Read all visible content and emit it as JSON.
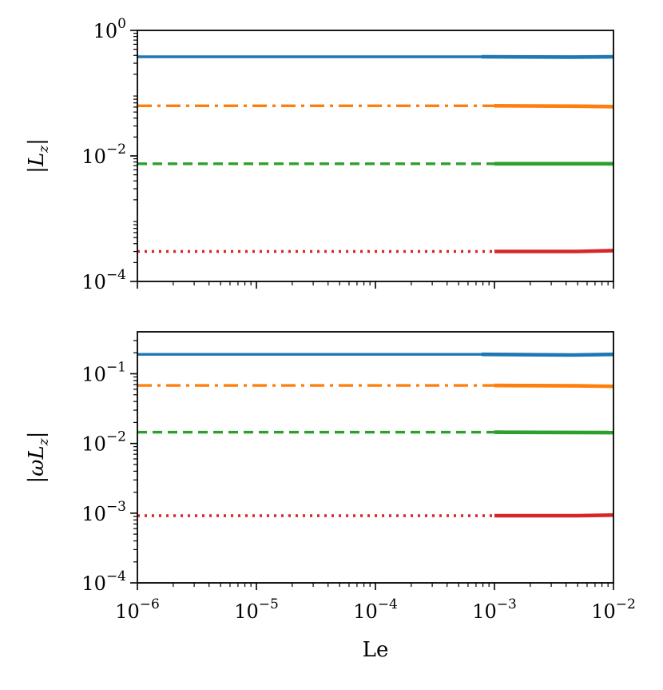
{
  "chart_data": [
    {
      "type": "line",
      "ylabel": "|L_z|",
      "ylabel_parts": {
        "open": "|",
        "symbol": "L",
        "sub": "z",
        "close": "|"
      },
      "xscale": "log",
      "yscale": "log",
      "xlim": [
        1e-06,
        0.01
      ],
      "ylim": [
        0.0001,
        1
      ],
      "x_ticks": [
        1e-06,
        1e-05,
        0.0001,
        0.001,
        0.01
      ],
      "x_tick_labels_shown": false,
      "y_ticks": [
        {
          "value": 1,
          "base": "10",
          "exp": "0"
        },
        {
          "value": 0.01,
          "base": "10",
          "exp": "−2"
        },
        {
          "value": 0.0001,
          "base": "10",
          "exp": "−4"
        }
      ],
      "grid": false,
      "series": [
        {
          "style": "solid",
          "color": "#1f77b4",
          "x": [
            1e-06,
            0.00078,
            0.0045,
            0.01
          ],
          "y": [
            0.38,
            0.38,
            0.375,
            0.38
          ]
        },
        {
          "style": "dashdot",
          "color": "#ff7f0e",
          "x": [
            1e-06,
            0.001,
            0.005,
            0.01
          ],
          "y": [
            0.063,
            0.063,
            0.062,
            0.061
          ]
        },
        {
          "style": "dashed",
          "color": "#2ca02c",
          "x": [
            1e-06,
            0.001,
            0.01
          ],
          "y": [
            0.0075,
            0.0075,
            0.0075
          ]
        },
        {
          "style": "dotted",
          "color": "#d62728",
          "x": [
            1e-06,
            0.001,
            0.005,
            0.01
          ],
          "y": [
            0.0003,
            0.0003,
            0.0003,
            0.00031
          ]
        }
      ]
    },
    {
      "type": "line",
      "xlabel": "Le",
      "ylabel": "|ωL_z|",
      "ylabel_parts": {
        "open": "|",
        "symbol": "ωL",
        "sub": "z",
        "close": "|"
      },
      "xscale": "log",
      "yscale": "log",
      "xlim": [
        1e-06,
        0.01
      ],
      "ylim": [
        0.0001,
        0.4
      ],
      "x_ticks": [
        {
          "value": 1e-06,
          "base": "10",
          "exp": "−6"
        },
        {
          "value": 1e-05,
          "base": "10",
          "exp": "−5"
        },
        {
          "value": 0.0001,
          "base": "10",
          "exp": "−4"
        },
        {
          "value": 0.001,
          "base": "10",
          "exp": "−3"
        },
        {
          "value": 0.01,
          "base": "10",
          "exp": "−2"
        }
      ],
      "y_ticks": [
        {
          "value": 0.1,
          "base": "10",
          "exp": "−1"
        },
        {
          "value": 0.01,
          "base": "10",
          "exp": "−2"
        },
        {
          "value": 0.001,
          "base": "10",
          "exp": "−3"
        },
        {
          "value": 0.0001,
          "base": "10",
          "exp": "−4"
        }
      ],
      "grid": false,
      "series": [
        {
          "style": "solid",
          "color": "#1f77b4",
          "x": [
            1e-06,
            0.00078,
            0.0045,
            0.01
          ],
          "y": [
            0.19,
            0.19,
            0.186,
            0.19
          ]
        },
        {
          "style": "dashdot",
          "color": "#ff7f0e",
          "x": [
            1e-06,
            0.001,
            0.005,
            0.01
          ],
          "y": [
            0.068,
            0.068,
            0.067,
            0.066
          ]
        },
        {
          "style": "dashed",
          "color": "#2ca02c",
          "x": [
            1e-06,
            0.001,
            0.01
          ],
          "y": [
            0.0145,
            0.0145,
            0.0143
          ]
        },
        {
          "style": "dotted",
          "color": "#d62728",
          "x": [
            1e-06,
            0.001,
            0.005,
            0.01
          ],
          "y": [
            0.00092,
            0.00092,
            0.00092,
            0.00094
          ]
        }
      ]
    }
  ]
}
